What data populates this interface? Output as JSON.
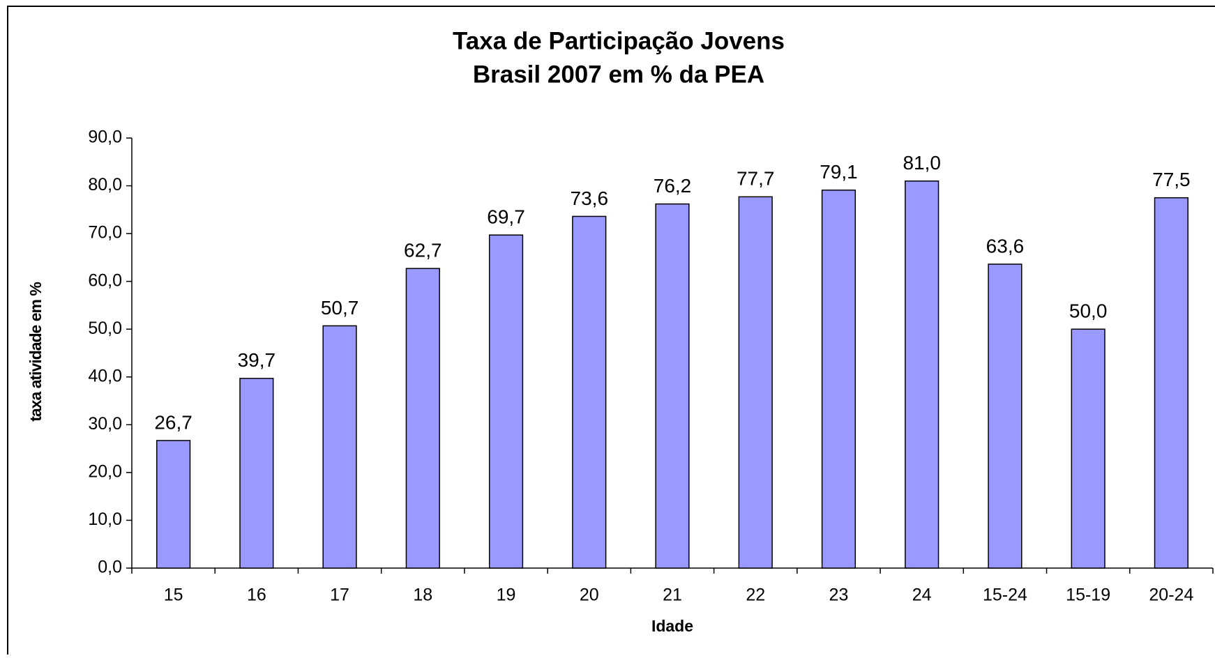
{
  "chart_data": {
    "type": "bar",
    "title": [
      "Taxa de Participação Jovens",
      "Brasil 2007 em % da PEA"
    ],
    "x_label": "Idade",
    "y_label": "taxa atividade em %",
    "categories": [
      "15",
      "16",
      "17",
      "18",
      "19",
      "20",
      "21",
      "22",
      "23",
      "24",
      "15-24",
      "15-19",
      "20-24"
    ],
    "values": [
      26.7,
      39.7,
      50.7,
      62.7,
      69.7,
      73.6,
      76.2,
      77.7,
      79.1,
      81.0,
      63.6,
      50.0,
      77.5
    ],
    "value_labels": [
      "26,7",
      "39,7",
      "50,7",
      "62,7",
      "69,7",
      "73,6",
      "76,2",
      "77,7",
      "79,1",
      "81,0",
      "63,6",
      "50,0",
      "77,5"
    ],
    "color": "#9999ff",
    "ylim": [
      0,
      90
    ],
    "yticks": [
      {
        "value": 0,
        "label": "0,0"
      },
      {
        "value": 10,
        "label": "10,0"
      },
      {
        "value": 20,
        "label": "20,0"
      },
      {
        "value": 30,
        "label": "30,0"
      },
      {
        "value": 40,
        "label": "40,0"
      },
      {
        "value": 50,
        "label": "50,0"
      },
      {
        "value": 60,
        "label": "60,0"
      },
      {
        "value": 70,
        "label": "70,0"
      },
      {
        "value": 80,
        "label": "80,0"
      },
      {
        "value": 90,
        "label": "90,0"
      }
    ],
    "grid": false
  }
}
